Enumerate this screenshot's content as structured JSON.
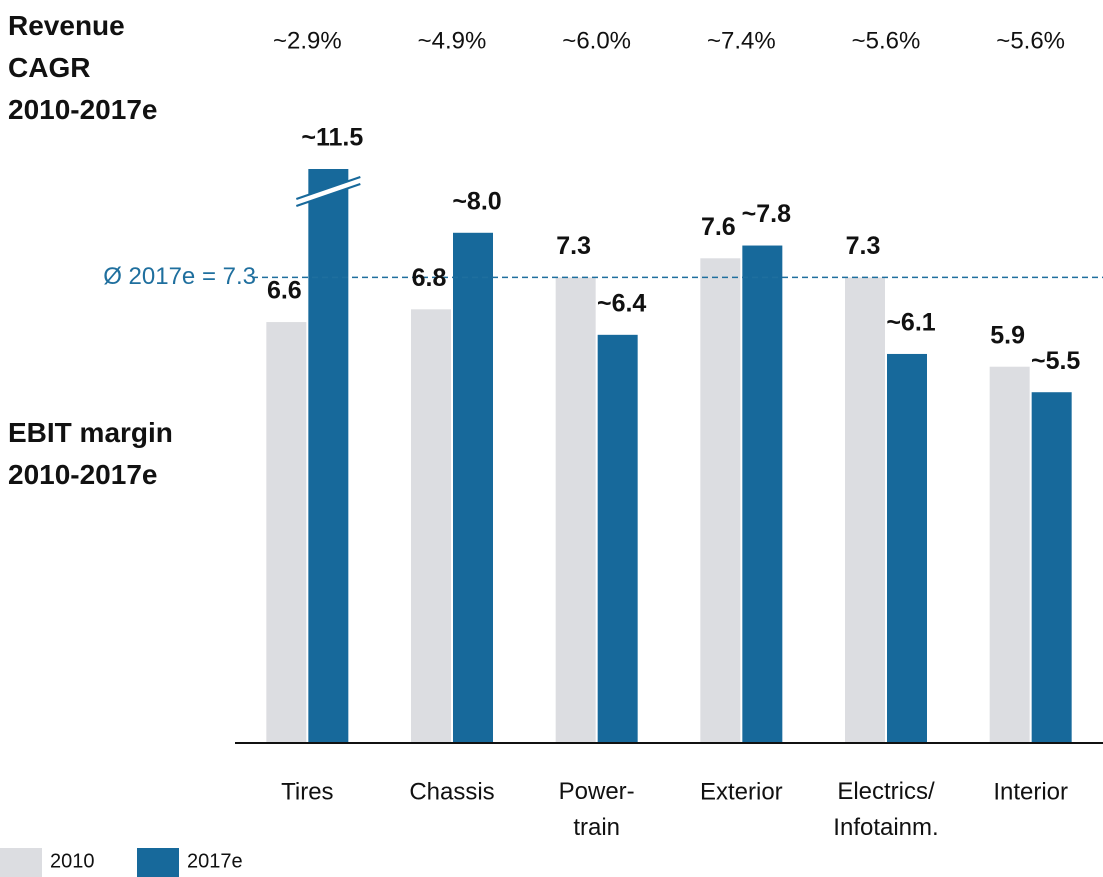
{
  "chart_data": {
    "type": "bar",
    "categories": [
      "Tires",
      "Chassis",
      "Power-\ntrain",
      "Exterior",
      "Electrics/\nInfotainm.",
      "Interior"
    ],
    "series": [
      {
        "name": "2010",
        "color": "#dcdde1",
        "values": [
          6.6,
          6.8,
          7.3,
          7.6,
          7.3,
          5.9
        ]
      },
      {
        "name": "2017e",
        "color": "#17699b",
        "values": [
          11.5,
          8.0,
          6.4,
          7.8,
          6.1,
          5.5
        ],
        "value_labels": [
          "~11.5",
          "~8.0",
          "~6.4",
          "~7.8",
          "~6.1",
          "~5.5"
        ]
      }
    ],
    "ylim": [
      0,
      9
    ],
    "axis_break": true,
    "reference_line": {
      "value": 7.3,
      "label": "Ø 2017e = 7.3",
      "color": "#1f6f9e"
    },
    "cagr": {
      "label": "Revenue\nCAGR\n2010-2017e",
      "values": [
        2.9,
        4.9,
        6.0,
        7.4,
        5.6,
        5.6
      ],
      "value_labels": [
        "~2.9%",
        "~4.9%",
        "~6.0%",
        "~7.4%",
        "~5.6%",
        "~5.6%"
      ]
    },
    "ebit_label": "EBIT margin\n2010-2017e"
  }
}
